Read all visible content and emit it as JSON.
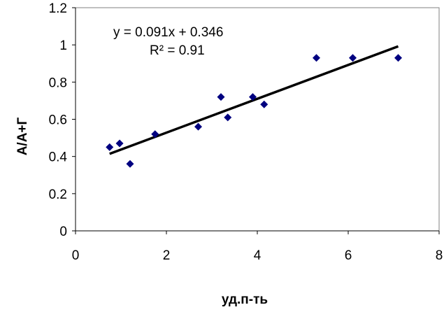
{
  "chart_data": {
    "type": "scatter",
    "title": "",
    "xlabel": "уд.п-ть",
    "ylabel": "А/А+Г",
    "xlim": [
      0,
      8
    ],
    "ylim": [
      0,
      1.2
    ],
    "x_ticks": [
      "0",
      "2",
      "4",
      "6",
      "8"
    ],
    "y_ticks": [
      "0",
      "0.2",
      "0.4",
      "0.6",
      "0.8",
      "1",
      "1.2"
    ],
    "grid": false,
    "legend": "none",
    "series": [
      {
        "marker": "diamond",
        "color": "#000080",
        "x": [
          0.75,
          0.97,
          1.2,
          1.75,
          2.7,
          3.2,
          3.35,
          3.9,
          4.15,
          5.3,
          6.1,
          7.1
        ],
        "y": [
          0.45,
          0.47,
          0.36,
          0.52,
          0.56,
          0.72,
          0.61,
          0.72,
          0.68,
          0.93,
          0.93,
          0.93
        ]
      }
    ],
    "trendline": {
      "type": "linear",
      "slope": 0.091,
      "intercept": 0.346,
      "x_range": [
        0.75,
        7.1
      ],
      "color": "#000000",
      "equation_label": "y = 0.091x + 0.346",
      "r2_label": "R² = 0.91"
    }
  }
}
